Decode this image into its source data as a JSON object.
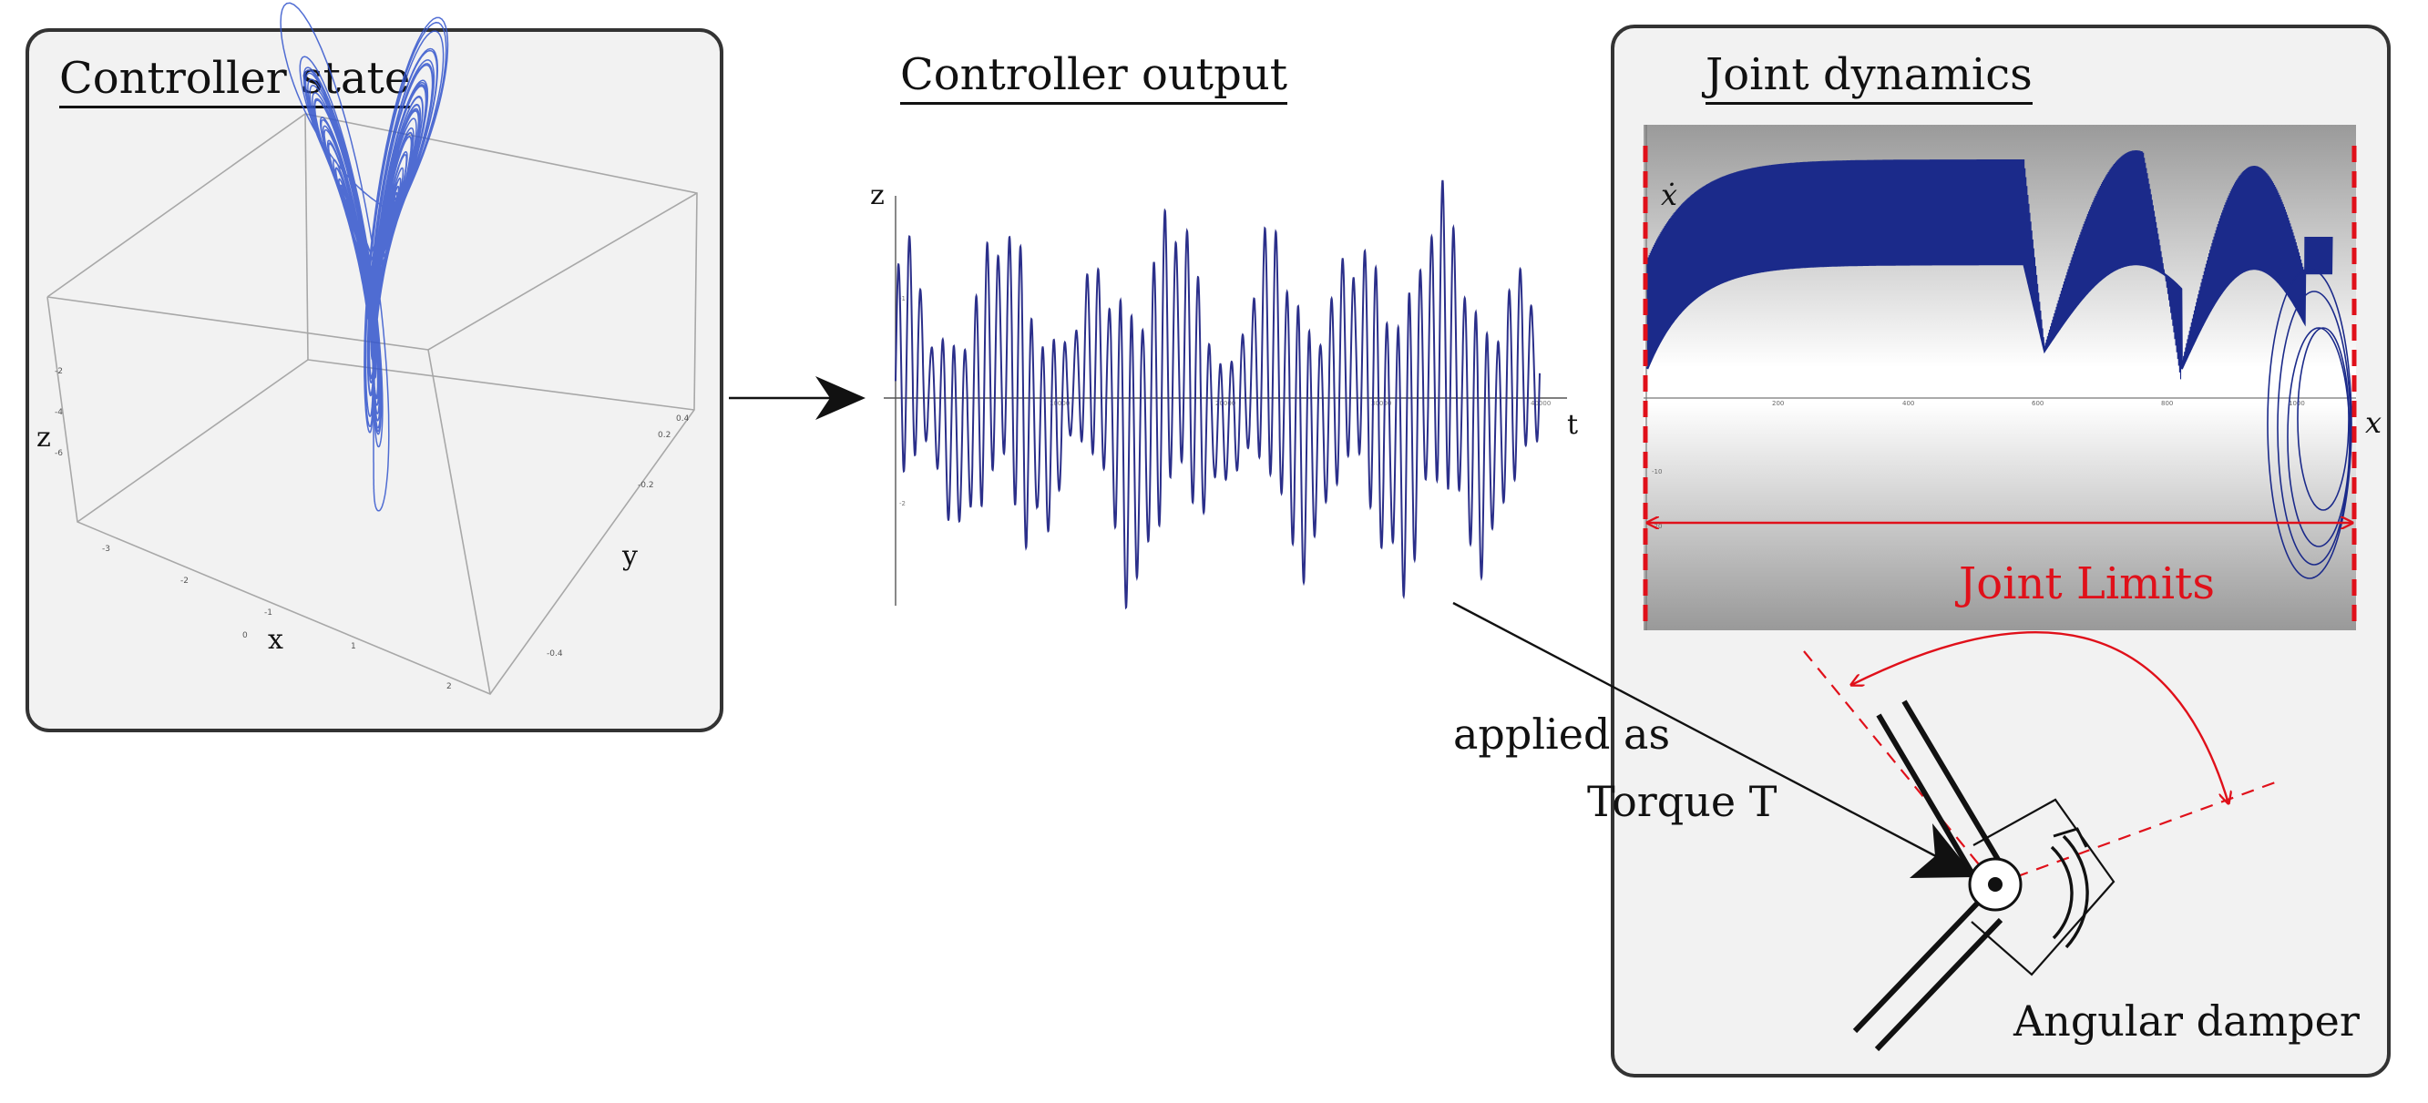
{
  "panels": {
    "state": {
      "title": "Controller state",
      "axes": {
        "x": "x",
        "y": "y",
        "z": "z"
      }
    },
    "output": {
      "title": "Controller output",
      "axes": {
        "y": "z",
        "x": "t"
      }
    },
    "joint": {
      "title": "Joint dynamics",
      "axes": {
        "y": "ẋ",
        "x": "x"
      },
      "limits_label": "Joint Limits",
      "damper_label": "Angular damper"
    }
  },
  "annotation": {
    "line1": "applied as",
    "line2": "Torque T"
  },
  "colors": {
    "trajectory": "#3355cc",
    "signal": "#2b2f8a",
    "limits": "#e0101a",
    "ink": "#111111",
    "panel_bg": "#f2f2f2"
  }
}
